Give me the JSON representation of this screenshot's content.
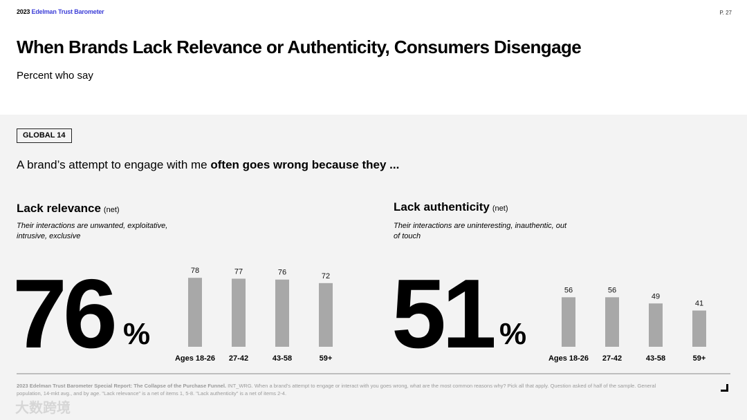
{
  "header": {
    "brand_year": "2023",
    "brand_name": "Edelman Trust Barometer",
    "page_number": "P. 27"
  },
  "title": "When Brands Lack Relevance or Authenticity, Consumers Disengage",
  "subtitle": "Percent who say",
  "tag": "GLOBAL 14",
  "lead": {
    "normal": "A brand’s attempt to engage with me ",
    "bold": "often goes wrong because they ..."
  },
  "sections": [
    {
      "heading": "Lack relevance",
      "net": "(net)",
      "description": "Their interactions are unwanted, exploitative, intrusive, exclusive",
      "big_value": "76",
      "percent_sign": "%"
    },
    {
      "heading": "Lack authenticity",
      "net": "(net)",
      "description": "Their interactions are uninteresting, inauthentic, out of touch",
      "big_value": "51",
      "percent_sign": "%"
    }
  ],
  "chart_data": [
    {
      "type": "bar",
      "title": "Lack relevance (net)",
      "categories": [
        "Ages 18-26",
        "27-42",
        "43-58",
        "59+"
      ],
      "values": [
        78,
        77,
        76,
        72
      ],
      "ylim": [
        0,
        100
      ],
      "bar_color": "#a8a8a8"
    },
    {
      "type": "bar",
      "title": "Lack authenticity (net)",
      "categories": [
        "Ages 18-26",
        "27-42",
        "43-58",
        "59+"
      ],
      "values": [
        56,
        56,
        49,
        41
      ],
      "ylim": [
        0,
        100
      ],
      "bar_color": "#a8a8a8"
    }
  ],
  "footnote": {
    "bold": "2023 Edelman Trust Barometer Special Report: The Collapse of the Purchase Funnel.",
    "text": " INT_WRG. When a brand's attempt to engage or interact with you goes wrong, what are the most common reasons why? Pick all that apply. Question asked of half of the sample. General population, 14-mkt avg., and by age. \"Lack relevance\" is a net of items 1, 5-8. \"Lack authenticity\" is a net of items 2-4."
  },
  "watermark": "大数跨境"
}
